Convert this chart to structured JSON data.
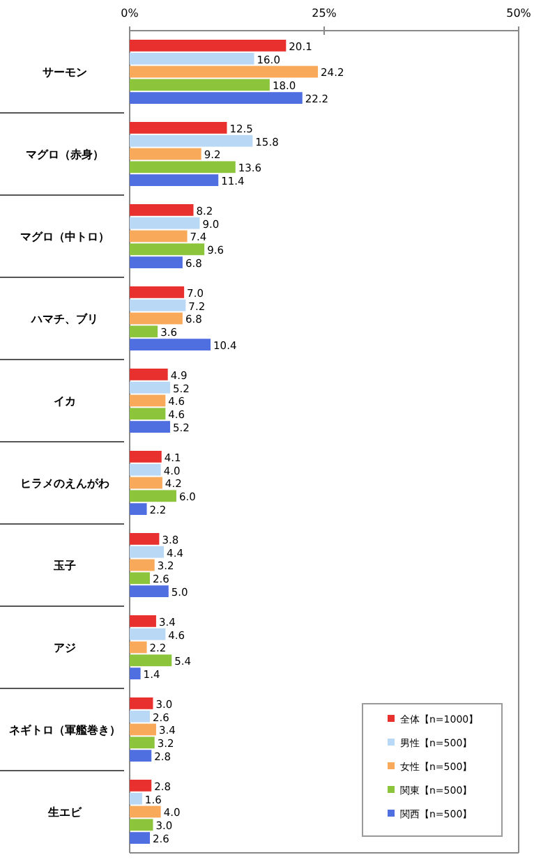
{
  "chart_data": {
    "type": "bar",
    "orientation": "horizontal",
    "categories": [
      "サーモン",
      "マグロ（赤身）",
      "マグロ（中トロ）",
      "ハマチ、ブリ",
      "イカ",
      "ヒラメのえんがわ",
      "玉子",
      "アジ",
      "ネギトロ（軍艦巻き）",
      "生エビ"
    ],
    "series": [
      {
        "name": "全体【n=1000】",
        "color": "#e8312f",
        "values": [
          20.1,
          12.5,
          8.2,
          7.0,
          4.9,
          4.1,
          3.8,
          3.4,
          3.0,
          2.8
        ],
        "value_labels": [
          "20.1",
          "12.5",
          "8.2",
          "7.0",
          "4.9",
          "4.1",
          "3.8",
          "3.4",
          "3.0",
          "2.8"
        ]
      },
      {
        "name": "男性【n=500】",
        "color": "#b9d8f5",
        "values": [
          16.0,
          15.8,
          9.0,
          7.2,
          5.2,
          4.0,
          4.4,
          4.6,
          2.6,
          1.6
        ],
        "value_labels": [
          "16.0",
          "15.8",
          "9.0",
          "7.2",
          "5.2",
          "4.0",
          "4.4",
          "4.6",
          "2.6",
          "1.6"
        ]
      },
      {
        "name": "女性【n=500】",
        "color": "#f9a95a",
        "values": [
          24.2,
          9.2,
          7.4,
          6.8,
          4.6,
          4.2,
          3.2,
          2.2,
          3.4,
          4.0
        ],
        "value_labels": [
          "24.2",
          "9.2",
          "7.4",
          "6.8",
          "4.6",
          "4.2",
          "3.2",
          "2.2",
          "3.4",
          "4.0"
        ]
      },
      {
        "name": "関東【n=500】",
        "color": "#8cc43c",
        "values": [
          18.0,
          13.6,
          9.6,
          3.6,
          4.6,
          6.0,
          2.6,
          5.4,
          3.2,
          3.0
        ],
        "value_labels": [
          "18.0",
          "13.6",
          "9.6",
          "3.6",
          "4.6",
          "6.0",
          "2.6",
          "5.4",
          "3.2",
          "3.0"
        ]
      },
      {
        "name": "関西【n=500】",
        "color": "#4f6fe0",
        "values": [
          22.2,
          11.4,
          6.8,
          10.4,
          5.2,
          2.2,
          5.0,
          1.4,
          2.8,
          2.6
        ],
        "value_labels": [
          "22.2",
          "11.4",
          "6.8",
          "10.4",
          "5.2",
          "2.2",
          "5.0",
          "1.4",
          "2.8",
          "2.6"
        ]
      }
    ],
    "xlim": [
      0,
      50
    ],
    "xticks": [
      {
        "value": 0,
        "label": "0%"
      },
      {
        "value": 25,
        "label": "25%"
      },
      {
        "value": 50,
        "label": "50%"
      }
    ],
    "legend": "bottom right",
    "grid": false
  }
}
